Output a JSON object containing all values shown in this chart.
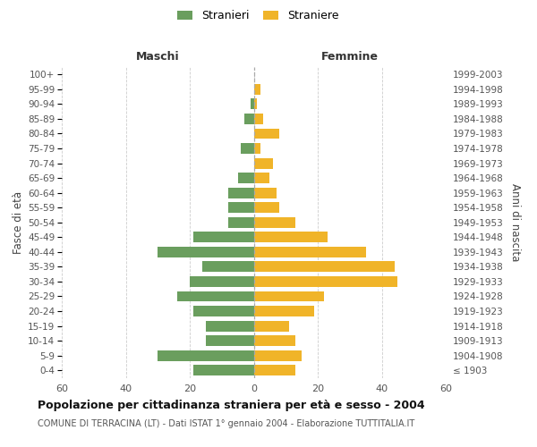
{
  "age_groups": [
    "100+",
    "95-99",
    "90-94",
    "85-89",
    "80-84",
    "75-79",
    "70-74",
    "65-69",
    "60-64",
    "55-59",
    "50-54",
    "45-49",
    "40-44",
    "35-39",
    "30-34",
    "25-29",
    "20-24",
    "15-19",
    "10-14",
    "5-9",
    "0-4"
  ],
  "birth_years": [
    "≤ 1903",
    "1904-1908",
    "1909-1913",
    "1914-1918",
    "1919-1923",
    "1924-1928",
    "1929-1933",
    "1934-1938",
    "1939-1943",
    "1944-1948",
    "1949-1953",
    "1954-1958",
    "1959-1963",
    "1964-1968",
    "1969-1973",
    "1974-1978",
    "1979-1983",
    "1984-1988",
    "1989-1993",
    "1994-1998",
    "1999-2003"
  ],
  "maschi": [
    0,
    0,
    1,
    3,
    0,
    4,
    0,
    5,
    8,
    8,
    8,
    19,
    30,
    16,
    20,
    24,
    19,
    15,
    15,
    30,
    19
  ],
  "femmine": [
    0,
    2,
    1,
    3,
    8,
    2,
    6,
    5,
    7,
    8,
    13,
    23,
    35,
    44,
    45,
    22,
    19,
    11,
    13,
    15,
    13
  ],
  "maschi_color": "#6a9e5e",
  "femmine_color": "#f0b429",
  "background_color": "#ffffff",
  "grid_color": "#cccccc",
  "title": "Popolazione per cittadinanza straniera per età e sesso - 2004",
  "subtitle": "COMUNE DI TERRACINA (LT) - Dati ISTAT 1° gennaio 2004 - Elaborazione TUTTITALIA.IT",
  "ylabel_left": "Fasce di età",
  "ylabel_right": "Anni di nascita",
  "xlabel_left": "Maschi",
  "xlabel_right": "Femmine",
  "legend_maschi": "Stranieri",
  "legend_femmine": "Straniere",
  "xlim": 60
}
